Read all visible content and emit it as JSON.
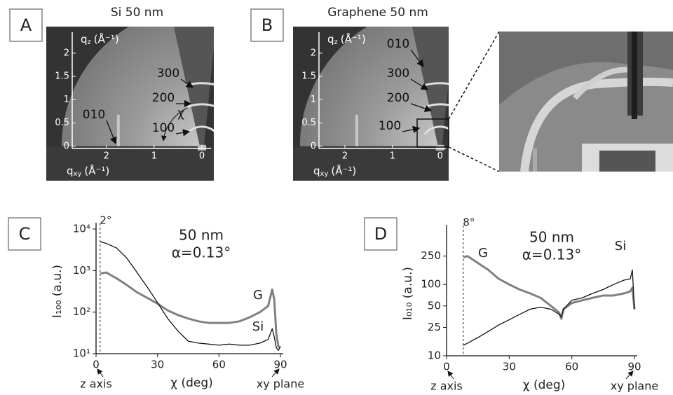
{
  "panel_labels": [
    "A",
    "B",
    "C",
    "D"
  ],
  "diffraction_images": [
    {
      "title": "Si 50 nm",
      "x_label": {
        "symbol": "q",
        "subscript": "xy",
        "unit": "(Å⁻¹)"
      },
      "y_label": {
        "symbol": "q",
        "subscript": "z",
        "unit": "(Å⁻¹)"
      },
      "xlim": [
        3.26,
        -0.25
      ],
      "ylim": [
        -0.74,
        2.57
      ],
      "xticks": [
        2,
        1,
        0
      ],
      "yticks": [
        0,
        0.5,
        1,
        1.5,
        2
      ],
      "peak_labels": [
        "010",
        "100",
        "200",
        "300"
      ],
      "angle_label": "χ"
    },
    {
      "title": "Graphene 50 nm",
      "x_label": {
        "symbol": "q",
        "subscript": "xy",
        "unit": "(Å⁻¹)"
      },
      "y_label": {
        "symbol": "q",
        "subscript": "z",
        "unit": "(Å⁻¹)"
      },
      "xlim": [
        3.09,
        -0.18
      ],
      "ylim": [
        -0.74,
        2.57
      ],
      "xticks": [
        2,
        1,
        0
      ],
      "yticks": [
        0,
        0.5,
        1,
        1.5,
        2
      ],
      "peak_labels": [
        "010",
        "300",
        "200",
        "100"
      ]
    }
  ],
  "chart_data": [
    {
      "type": "line",
      "log_y": true,
      "x_label": "χ (deg)",
      "y_label": "I₁₀₀ (a.u.)",
      "title": "50 nm",
      "subtitle": "α=0.13°",
      "marker": {
        "value": 2,
        "label": "2°"
      },
      "x_annotations": [
        "z axis",
        "xy plane"
      ],
      "xlim": [
        0,
        90
      ],
      "xticks": [
        0,
        30,
        60,
        90
      ],
      "ylim": [
        10,
        10000
      ],
      "yticks": [
        {
          "value": 10,
          "label": "10¹"
        },
        {
          "value": 100,
          "label": "10²"
        },
        {
          "value": 1000,
          "label": "10³"
        },
        {
          "value": 10000,
          "label": "10⁴"
        }
      ],
      "series": [
        {
          "name": "G",
          "color": "#808080",
          "width": 3,
          "x": [
            2,
            5,
            10,
            15,
            20,
            25,
            30,
            35,
            40,
            45,
            50,
            55,
            60,
            65,
            70,
            75,
            80,
            84,
            86,
            87,
            88,
            89,
            90
          ],
          "values": [
            850,
            900,
            650,
            450,
            300,
            220,
            160,
            110,
            85,
            70,
            60,
            55,
            55,
            55,
            60,
            75,
            100,
            140,
            350,
            200,
            30,
            15,
            14
          ]
        },
        {
          "name": "Si",
          "color": "#111111",
          "width": 1.3,
          "x": [
            2,
            5,
            10,
            15,
            20,
            25,
            30,
            35,
            40,
            45,
            50,
            55,
            60,
            65,
            70,
            75,
            80,
            84,
            86,
            87,
            88,
            89,
            90
          ],
          "values": [
            5000,
            4500,
            3500,
            2000,
            900,
            400,
            170,
            70,
            35,
            20,
            18,
            17,
            16,
            17,
            16,
            16,
            18,
            22,
            40,
            25,
            14,
            12,
            15
          ]
        }
      ]
    },
    {
      "type": "line",
      "log_y": true,
      "x_label": "χ (deg)",
      "y_label": "I₀₁₀ (a.u.)",
      "title": "50 nm",
      "subtitle": "α=0.13°",
      "marker": {
        "value": 8,
        "label": "8°"
      },
      "x_annotations": [
        "z axis",
        "xy plane"
      ],
      "xlim": [
        0,
        90
      ],
      "xticks": [
        0,
        30,
        60,
        90
      ],
      "ylim": [
        10,
        560
      ],
      "yticks": [
        10,
        25,
        50,
        100,
        250
      ],
      "series": [
        {
          "name": "G",
          "color": "#808080",
          "width": 3,
          "x": [
            8,
            10,
            15,
            20,
            25,
            30,
            35,
            40,
            45,
            50,
            54,
            55,
            56,
            60,
            65,
            70,
            75,
            80,
            85,
            88,
            89,
            90
          ],
          "values": [
            240,
            250,
            200,
            160,
            120,
            100,
            85,
            75,
            65,
            50,
            40,
            33,
            45,
            55,
            60,
            65,
            70,
            70,
            75,
            80,
            90,
            45
          ]
        },
        {
          "name": "Si",
          "color": "#111111",
          "width": 1.3,
          "x": [
            8,
            10,
            15,
            20,
            25,
            30,
            35,
            40,
            45,
            50,
            54,
            55,
            56,
            60,
            65,
            70,
            75,
            80,
            85,
            88,
            89,
            90
          ],
          "values": [
            14,
            15,
            18,
            22,
            27,
            32,
            38,
            45,
            48,
            45,
            38,
            35,
            45,
            60,
            65,
            75,
            85,
            100,
            115,
            120,
            160,
            45
          ]
        }
      ]
    }
  ]
}
